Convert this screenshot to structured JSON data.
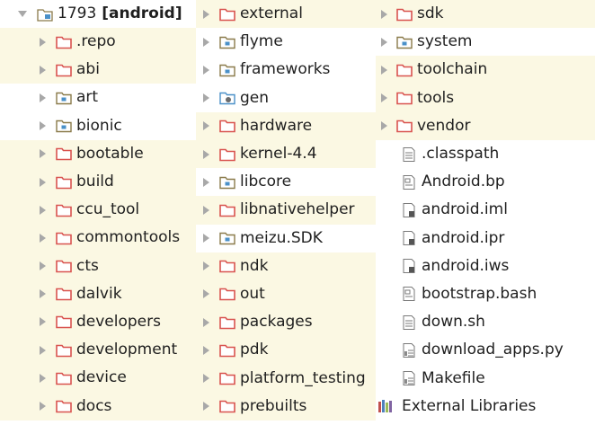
{
  "root": {
    "number": "1793",
    "module": "[android]"
  },
  "col1": [
    "repo_placeholder"
  ],
  "column1": [
    {
      "label": ".repo",
      "icon": "folder-icon",
      "hl": true
    },
    {
      "label": "abi",
      "icon": "folder-icon",
      "hl": true
    },
    {
      "label": "art",
      "icon": "module-folder-icon",
      "hl": false
    },
    {
      "label": "bionic",
      "icon": "module-folder-icon",
      "hl": false
    },
    {
      "label": "bootable",
      "icon": "folder-icon",
      "hl": true
    },
    {
      "label": "build",
      "icon": "folder-icon",
      "hl": true
    },
    {
      "label": "ccu_tool",
      "icon": "folder-icon",
      "hl": true
    },
    {
      "label": "commontools",
      "icon": "folder-icon",
      "hl": true
    },
    {
      "label": "cts",
      "icon": "folder-icon",
      "hl": true
    },
    {
      "label": "dalvik",
      "icon": "folder-icon",
      "hl": true
    },
    {
      "label": "developers",
      "icon": "folder-icon",
      "hl": true
    },
    {
      "label": "development",
      "icon": "folder-icon",
      "hl": true
    },
    {
      "label": "device",
      "icon": "folder-icon",
      "hl": true
    },
    {
      "label": "docs",
      "icon": "folder-icon",
      "hl": true
    }
  ],
  "column2": [
    {
      "label": "external",
      "icon": "folder-icon",
      "hl": true
    },
    {
      "label": "flyme",
      "icon": "module-folder-icon",
      "hl": false
    },
    {
      "label": "frameworks",
      "icon": "module-folder-icon",
      "hl": false
    },
    {
      "label": "gen",
      "icon": "generated-folder-icon",
      "hl": false
    },
    {
      "label": "hardware",
      "icon": "folder-icon",
      "hl": true
    },
    {
      "label": "kernel-4.4",
      "icon": "folder-icon",
      "hl": true
    },
    {
      "label": "libcore",
      "icon": "module-folder-icon",
      "hl": false
    },
    {
      "label": "libnativehelper",
      "icon": "folder-icon",
      "hl": true
    },
    {
      "label": "meizu.SDK",
      "icon": "module-folder-icon",
      "hl": false
    },
    {
      "label": "ndk",
      "icon": "folder-icon",
      "hl": true
    },
    {
      "label": "out",
      "icon": "folder-icon",
      "hl": true
    },
    {
      "label": "packages",
      "icon": "folder-icon",
      "hl": true
    },
    {
      "label": "pdk",
      "icon": "folder-icon",
      "hl": true
    },
    {
      "label": "platform_testing",
      "icon": "folder-icon",
      "hl": true
    },
    {
      "label": "prebuilts",
      "icon": "folder-icon",
      "hl": true
    }
  ],
  "column3": [
    {
      "label": "sdk",
      "icon": "folder-icon",
      "hl": true,
      "kind": "dir"
    },
    {
      "label": "system",
      "icon": "module-folder-icon",
      "hl": false,
      "kind": "dir"
    },
    {
      "label": "toolchain",
      "icon": "folder-icon",
      "hl": true,
      "kind": "dir"
    },
    {
      "label": "tools",
      "icon": "folder-icon",
      "hl": true,
      "kind": "dir"
    },
    {
      "label": "vendor",
      "icon": "folder-icon",
      "hl": true,
      "kind": "dir"
    },
    {
      "label": ".classpath",
      "icon": "text-file-icon",
      "hl": false,
      "kind": "file"
    },
    {
      "label": "Android.bp",
      "icon": "build-file-icon",
      "hl": false,
      "kind": "file"
    },
    {
      "label": "android.iml",
      "icon": "locked-file-icon",
      "hl": false,
      "kind": "file"
    },
    {
      "label": "android.ipr",
      "icon": "locked-file-icon",
      "hl": false,
      "kind": "file"
    },
    {
      "label": "android.iws",
      "icon": "locked-file-icon",
      "hl": false,
      "kind": "file"
    },
    {
      "label": "bootstrap.bash",
      "icon": "build-file-icon",
      "hl": false,
      "kind": "file"
    },
    {
      "label": "down.sh",
      "icon": "text-file-icon",
      "hl": false,
      "kind": "file"
    },
    {
      "label": "download_apps.py",
      "icon": "script-file-icon",
      "hl": false,
      "kind": "file"
    },
    {
      "label": "Makefile",
      "icon": "script-file-icon",
      "hl": false,
      "kind": "file"
    },
    {
      "label": "External Libraries",
      "icon": "libraries-icon",
      "hl": false,
      "kind": "lib"
    }
  ],
  "colors": {
    "folder": "#d9534f",
    "module_folder": "#8a7a4a",
    "highlight": "#fbf8e3",
    "arrow": "#a8a8a8"
  }
}
